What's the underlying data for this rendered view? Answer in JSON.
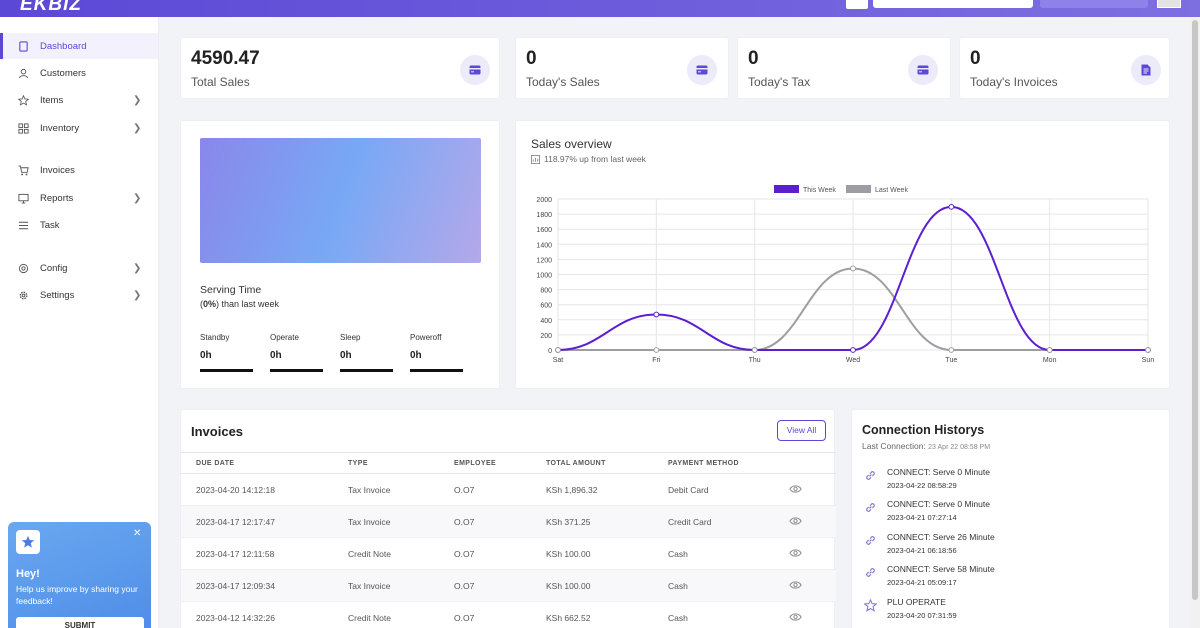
{
  "app": {
    "logo": "EKBIZ"
  },
  "sidebar": {
    "items": [
      {
        "label": "Dashboard",
        "icon": "home-icon",
        "has_children": false,
        "active": true
      },
      {
        "label": "Customers",
        "icon": "user-icon",
        "has_children": false
      },
      {
        "label": "Items",
        "icon": "star-icon",
        "has_children": true
      },
      {
        "label": "Inventory",
        "icon": "grid-icon",
        "has_children": true
      },
      {
        "label": "Invoices",
        "icon": "cart-icon",
        "has_children": false
      },
      {
        "label": "Reports",
        "icon": "monitor-icon",
        "has_children": true
      },
      {
        "label": "Task",
        "icon": "list-icon",
        "has_children": false
      },
      {
        "label": "Config",
        "icon": "config-icon",
        "has_children": true
      },
      {
        "label": "Settings",
        "icon": "gear-icon",
        "has_children": true
      }
    ],
    "feedback": {
      "title": "Hey!",
      "text": "Help us improve by sharing your feedback!",
      "submit_label": "SUBMIT"
    }
  },
  "stats": [
    {
      "value": "4590.47",
      "label": "Total Sales",
      "icon": "card-icon"
    },
    {
      "value": "0",
      "label": "Today's Sales",
      "icon": "card-icon"
    },
    {
      "value": "0",
      "label": "Today's Tax",
      "icon": "card-icon"
    },
    {
      "value": "0",
      "label": "Today's Invoices",
      "icon": "document-icon"
    }
  ],
  "serving": {
    "title": "Serving Time",
    "pct": "0%",
    "sub_rest": " than last week",
    "metrics": [
      {
        "label": "Standby",
        "value": "0h"
      },
      {
        "label": "Operate",
        "value": "0h"
      },
      {
        "label": "Sleep",
        "value": "0h"
      },
      {
        "label": "Poweroff",
        "value": "0h"
      }
    ]
  },
  "sales_overview": {
    "title": "Sales overview",
    "subtitle": "118.97% up from last week"
  },
  "chart_data": {
    "type": "line",
    "categories": [
      "Sat",
      "Fri",
      "Thu",
      "Wed",
      "Tue",
      "Mon",
      "Sun"
    ],
    "series": [
      {
        "name": "This Week",
        "color": "#5b1fd0",
        "values": [
          0,
          470,
          0,
          0,
          1896,
          0,
          0
        ]
      },
      {
        "name": "Last Week",
        "color": "#9d9da3",
        "values": [
          0,
          0,
          0,
          1080,
          0,
          0,
          0
        ]
      }
    ],
    "ylim": [
      0,
      2000
    ],
    "yticks": [
      0,
      200,
      400,
      600,
      800,
      1000,
      1200,
      1400,
      1600,
      1800,
      2000
    ],
    "grid": true,
    "legend": "top-center",
    "smooth": true
  },
  "invoices": {
    "title": "Invoices",
    "view_all": "View All",
    "columns": [
      "DUE DATE",
      "TYPE",
      "EMPLOYEE",
      "TOTAL AMOUNT",
      "PAYMENT METHOD"
    ],
    "rows": [
      [
        "2023-04-20 14:12:18",
        "Tax Invoice",
        "O.O7",
        "KSh 1,896.32",
        "Debit Card"
      ],
      [
        "2023-04-17 12:17:47",
        "Tax Invoice",
        "O.O7",
        "KSh 371.25",
        "Credit Card"
      ],
      [
        "2023-04-17 12:11:58",
        "Credit Note",
        "O.O7",
        "KSh 100.00",
        "Cash"
      ],
      [
        "2023-04-17 12:09:34",
        "Tax Invoice",
        "O.O7",
        "KSh 100.00",
        "Cash"
      ],
      [
        "2023-04-12 14:32:26",
        "Credit Note",
        "O.O7",
        "KSh 662.52",
        "Cash"
      ]
    ]
  },
  "connections": {
    "title": "Connection Historys",
    "last_label": "Last Connection: ",
    "last_value": "23 Apr 22 08:58 PM",
    "items": [
      {
        "text": "CONNECT: Serve 0 Minute",
        "time": "2023-04-22 08:58:29",
        "icon": "link-icon"
      },
      {
        "text": "CONNECT: Serve 0 Minute",
        "time": "2023-04-21 07:27:14",
        "icon": "link-icon"
      },
      {
        "text": "CONNECT: Serve 26 Minute",
        "time": "2023-04-21 06:18:56",
        "icon": "link-icon"
      },
      {
        "text": "CONNECT: Serve 58 Minute",
        "time": "2023-04-21 05:09:17",
        "icon": "link-icon"
      },
      {
        "text": "PLU OPERATE",
        "time": "2023-04-20 07:31:59",
        "icon": "star-icon"
      }
    ]
  }
}
